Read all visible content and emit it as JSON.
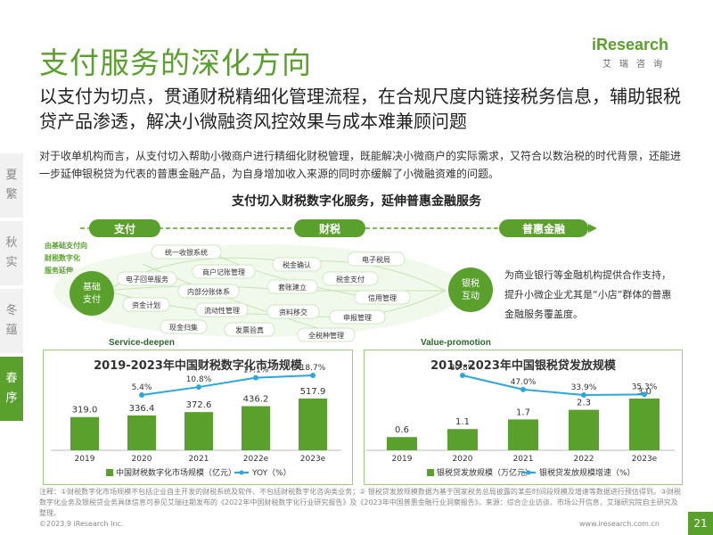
{
  "side_tabs": [
    {
      "chars": [
        "夏",
        "繁"
      ],
      "active": false
    },
    {
      "chars": [
        "秋",
        "实"
      ],
      "active": false
    },
    {
      "chars": [
        "冬",
        "蕴"
      ],
      "active": false
    },
    {
      "chars": [
        "春",
        "序"
      ],
      "active": true
    }
  ],
  "logo": {
    "text": "iResearch",
    "sub": "艾瑞咨询"
  },
  "title": "支付服务的深化方向",
  "subtitle": "以支付为切点，贯通财税精细化管理流程，在合规尺度内链接税务信息，辅助银税贷产品渗透，解决小微融资风控效果与成本难兼顾问题",
  "body": "对于收单机构而言，从支付切入帮助小微商户进行精细化财税管理，既能解决小微商户的实际需求，又符合以数治税的时代背景，还能进一步延伸银税贷为代表的普惠金融产品，为自身增加收入来源的同时亦缓解了小微融资难的问题。",
  "diagram": {
    "title": "支付切入财税数字化服务，延伸普惠金融服务",
    "stages": [
      "支付",
      "财税",
      "普惠金融"
    ],
    "left_note": [
      "由基础支付向",
      "财税数字化",
      "服务延伸"
    ],
    "left_circle": [
      "基础",
      "支付"
    ],
    "right_circle": [
      "银税",
      "互动"
    ],
    "items": [
      "统一收银系统",
      "商户记账管理",
      "电子回单服务",
      "内部分账体系",
      "资金计划",
      "流动性管理",
      "现金归集",
      "发票验真",
      "税金确认",
      "套账建立",
      "资料移交",
      "全税种管理",
      "电子税局",
      "税金支付",
      "信用管理",
      "申报管理"
    ],
    "service_deepen": "Service-deepen",
    "value_promotion": "Value-promotion",
    "right_text": "为商业银行等金融机构提供合作支持，提升小微企业尤其是“小店”群体的普惠金融服务覆盖度。"
  },
  "colors": {
    "brand": "#5aa02c",
    "line": "#29a8e0",
    "panel_border": "#9ccd7a"
  },
  "chart_data": [
    {
      "type": "bar",
      "title": "2019-2023年中国财税数字化市场规模",
      "categories": [
        "2019",
        "2020",
        "2021",
        "2022e",
        "2023e"
      ],
      "series": [
        {
          "name": "中国财税数字化市场规模（亿元）",
          "values": [
            319.0,
            336.4,
            372.6,
            436.2,
            517.9
          ],
          "labels": [
            "319.0",
            "336.4",
            "372.6",
            "436.2",
            "517.9"
          ]
        },
        {
          "name": "YOY（%）",
          "type": "line",
          "values": [
            null,
            5.4,
            10.8,
            17.1,
            18.7
          ],
          "labels": [
            "",
            "5.4%",
            "10.8%",
            "17.1%",
            "18.7%"
          ]
        }
      ]
    },
    {
      "type": "bar",
      "title": "2019-2023年中国银税贷发放规模",
      "categories": [
        "2019",
        "2020",
        "2021",
        "2022",
        "2023e"
      ],
      "series": [
        {
          "name": "银税贷发放规模（万亿元）",
          "values": [
            0.6,
            1.1,
            1.7,
            2.3,
            3.0
          ],
          "labels": [
            "0.6",
            "1.1",
            "1.7",
            "2.3",
            "3.0"
          ]
        },
        {
          "name": "银税贷发放规模增速（%）",
          "type": "line",
          "values": [
            null,
            80.8,
            47.0,
            33.9,
            35.3
          ],
          "labels": [
            "",
            "80.8%",
            "47.0%",
            "33.9%",
            "35.3%"
          ]
        }
      ]
    }
  ],
  "footnote": "注释：①财税数字化市场规模不包括企业自主开发的财税系统及软件、不包括财税数字化咨询类业务；② 银税贷发放规模数据为基于国家税务总局披露的某些时间段规模及增速等数据进行预估得到。③财税数字化业务及银税贷业务具体信息可参见艾瑞往期发布的《2022年中国财税数字化行业研究报告》及《2023年中国普惠金融行业洞察报告》。来源：综合企业访谈、市场公开信息，艾瑞研究院自主研究及整理。",
  "copyright": "©2023.9 iResearch Inc.",
  "website": "www.iresearch.com.cn",
  "page_number": "21"
}
